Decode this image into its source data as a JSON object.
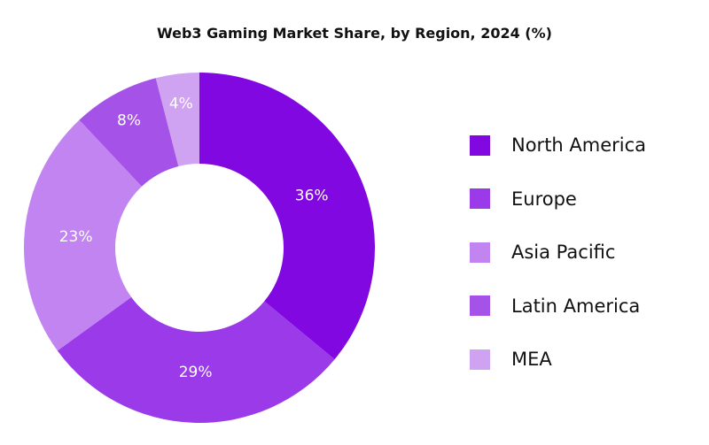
{
  "chart_data": {
    "type": "pie",
    "variant": "donut",
    "title": "Web3 Gaming Market Share, by Region, 2024 (%)",
    "categories": [
      "North America",
      "Europe",
      "Asia Pacific",
      "Latin America",
      "MEA"
    ],
    "values": [
      36,
      29,
      23,
      8,
      4
    ],
    "data_labels": [
      "36%",
      "29%",
      "23%",
      "8%",
      "4%"
    ],
    "colors": [
      "#8108e0",
      "#9a3ae8",
      "#c184f0",
      "#a552e8",
      "#cfa2f2"
    ],
    "legend_position": "right"
  }
}
